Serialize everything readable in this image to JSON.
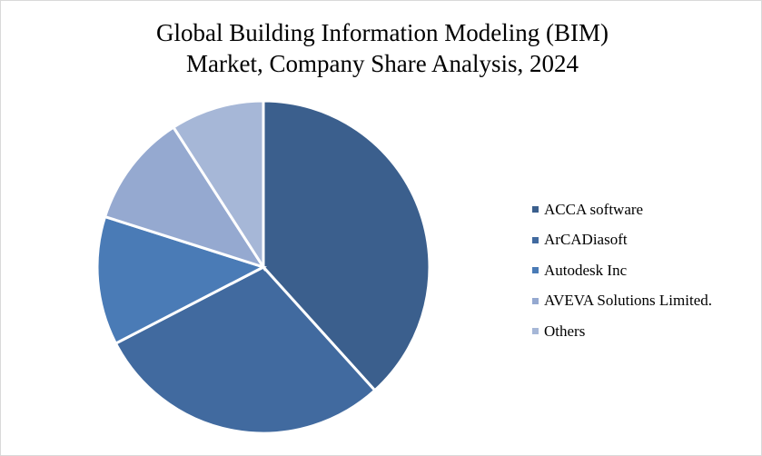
{
  "chart_data": {
    "type": "pie",
    "title": "Global Building Information Modeling (BIM) Market, Company Share Analysis, 2024",
    "title_lines": [
      "Global Building Information Modeling (BIM)",
      "Market, Company Share Analysis, 2024"
    ],
    "legend_position": "right",
    "slices": [
      {
        "label": "ACCA software",
        "value": 38.3,
        "color": "#3b5f8d"
      },
      {
        "label": "ArCADiasoft",
        "value": 29.1,
        "color": "#416a9f"
      },
      {
        "label": "Autodesk Inc",
        "value": 12.5,
        "color": "#4a7bb6"
      },
      {
        "label": "AVEVA Solutions Limited.",
        "value": 11.0,
        "color": "#95a9d0"
      },
      {
        "label": "Others",
        "value": 9.1,
        "color": "#a6b7d7"
      }
    ]
  }
}
